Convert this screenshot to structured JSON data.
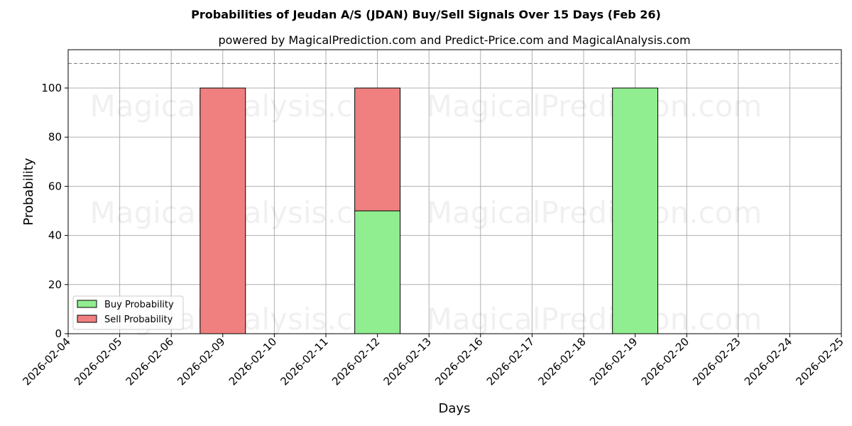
{
  "chart_data": {
    "type": "bar",
    "stacked": true,
    "title": "Probabilities of Jeudan A/S (JDAN) Buy/Sell Signals Over 15 Days (Feb 26)",
    "subtitle": "powered by MagicalPrediction.com and Predict-Price.com and MagicalAnalysis.com",
    "xlabel": "Days",
    "ylabel": "Probability",
    "categories": [
      "2026-02-04",
      "2026-02-05",
      "2026-02-06",
      "2026-02-09",
      "2026-02-10",
      "2026-02-11",
      "2026-02-12",
      "2026-02-13",
      "2026-02-16",
      "2026-02-17",
      "2026-02-18",
      "2026-02-19",
      "2026-02-20",
      "2026-02-23",
      "2026-02-24",
      "2026-02-25"
    ],
    "series": [
      {
        "name": "Buy Probability",
        "color": "#90ee90",
        "values": [
          0,
          0,
          0,
          0,
          0,
          0,
          50,
          0,
          0,
          0,
          0,
          100,
          0,
          0,
          0,
          0
        ]
      },
      {
        "name": "Sell Probability",
        "color": "#f08080",
        "values": [
          0,
          0,
          0,
          100,
          0,
          0,
          50,
          0,
          0,
          0,
          0,
          0,
          0,
          0,
          0,
          0
        ]
      }
    ],
    "ylim": [
      0,
      115.6
    ],
    "yticks": [
      0,
      20,
      40,
      60,
      80,
      100
    ],
    "reference_line": 110,
    "grid": true,
    "legend_position": "bottom-left",
    "watermarks": [
      "MagicalAnalysis.com",
      "MagicalPrediction.com"
    ]
  }
}
